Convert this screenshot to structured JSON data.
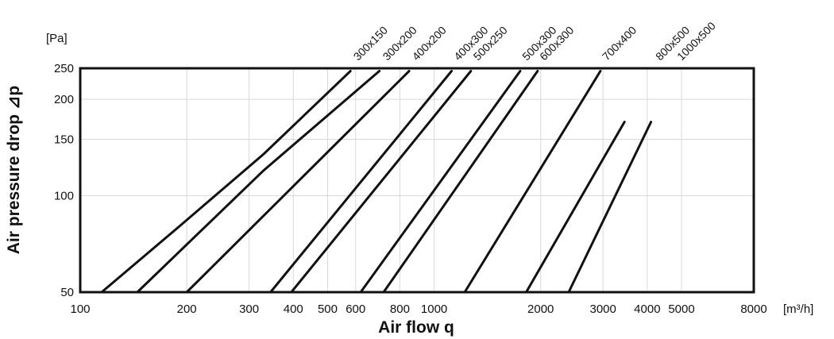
{
  "chart_data": {
    "type": "line",
    "title": "",
    "xlabel": "Air flow q",
    "ylabel": "Air pressure drop ⊿p",
    "x_unit": "[m³/h]",
    "y_unit": "[Pa]",
    "x_scale": "log",
    "y_scale": "log",
    "xlim": [
      100,
      8000
    ],
    "ylim": [
      50,
      250
    ],
    "grid": true,
    "x_ticks": [
      100,
      200,
      300,
      400,
      500,
      600,
      800,
      1000,
      2000,
      3000,
      4000,
      5000,
      8000
    ],
    "x_tick_labels": [
      "100",
      "200",
      "300",
      "400",
      "500",
      "600",
      "800",
      "1000",
      "2000",
      "3000",
      "4000",
      "5000",
      "8000"
    ],
    "y_ticks": [
      50,
      100,
      150,
      200,
      250
    ],
    "y_tick_labels": [
      "50",
      "100",
      "150",
      "200",
      "250"
    ],
    "series": [
      {
        "name": "300x150",
        "x": [
          115,
          190,
          330,
          580
        ],
        "y": [
          50,
          80,
          135,
          245
        ]
      },
      {
        "name": "300x200",
        "x": [
          145,
          330,
          700
        ],
        "y": [
          50,
          120,
          245
        ]
      },
      {
        "name": "400x200",
        "x": [
          200,
          850
        ],
        "y": [
          50,
          245
        ]
      },
      {
        "name": "400x300",
        "x": [
          345,
          1120
        ],
        "y": [
          50,
          245
        ]
      },
      {
        "name": "500x250",
        "x": [
          395,
          1270
        ],
        "y": [
          50,
          245
        ]
      },
      {
        "name": "500x300",
        "x": [
          620,
          1750
        ],
        "y": [
          50,
          245
        ]
      },
      {
        "name": "600x300",
        "x": [
          720,
          1960
        ],
        "y": [
          50,
          245
        ]
      },
      {
        "name": "700x400",
        "x": [
          1220,
          2950
        ],
        "y": [
          50,
          245
        ]
      },
      {
        "name": "800x500",
        "x": [
          1820,
          3450
        ],
        "y": [
          50,
          170
        ]
      },
      {
        "name": "1000x500",
        "x": [
          2400,
          4100
        ],
        "y": [
          50,
          170
        ]
      }
    ]
  }
}
